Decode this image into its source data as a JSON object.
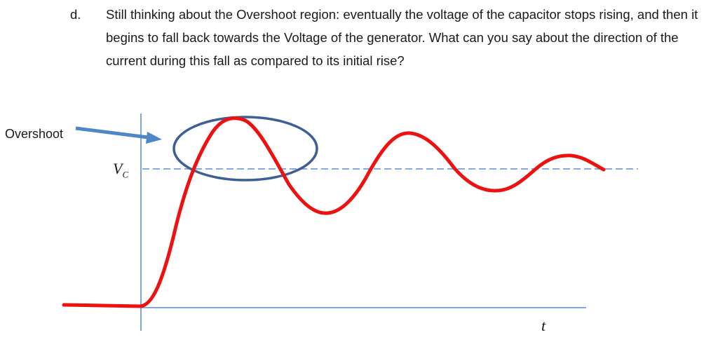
{
  "question": {
    "marker": "d.",
    "text": "Still thinking about the Overshoot region: eventually the voltage of the capacitor stops rising, and then it begins to fall back towards the Voltage of the generator.  What can you say about the direction of the current during this fall as compared to its initial rise?"
  },
  "diagram": {
    "overshoot_label": "Overshoot",
    "vc_label": "V",
    "vc_subscript": "C",
    "t_label": "t",
    "colors": {
      "curve": "#ee1111",
      "axes": "#5b8fd4",
      "reference_line": "#5b8fd4",
      "ellipse": "#3d5f95",
      "arrow": "#4f86c6"
    }
  }
}
